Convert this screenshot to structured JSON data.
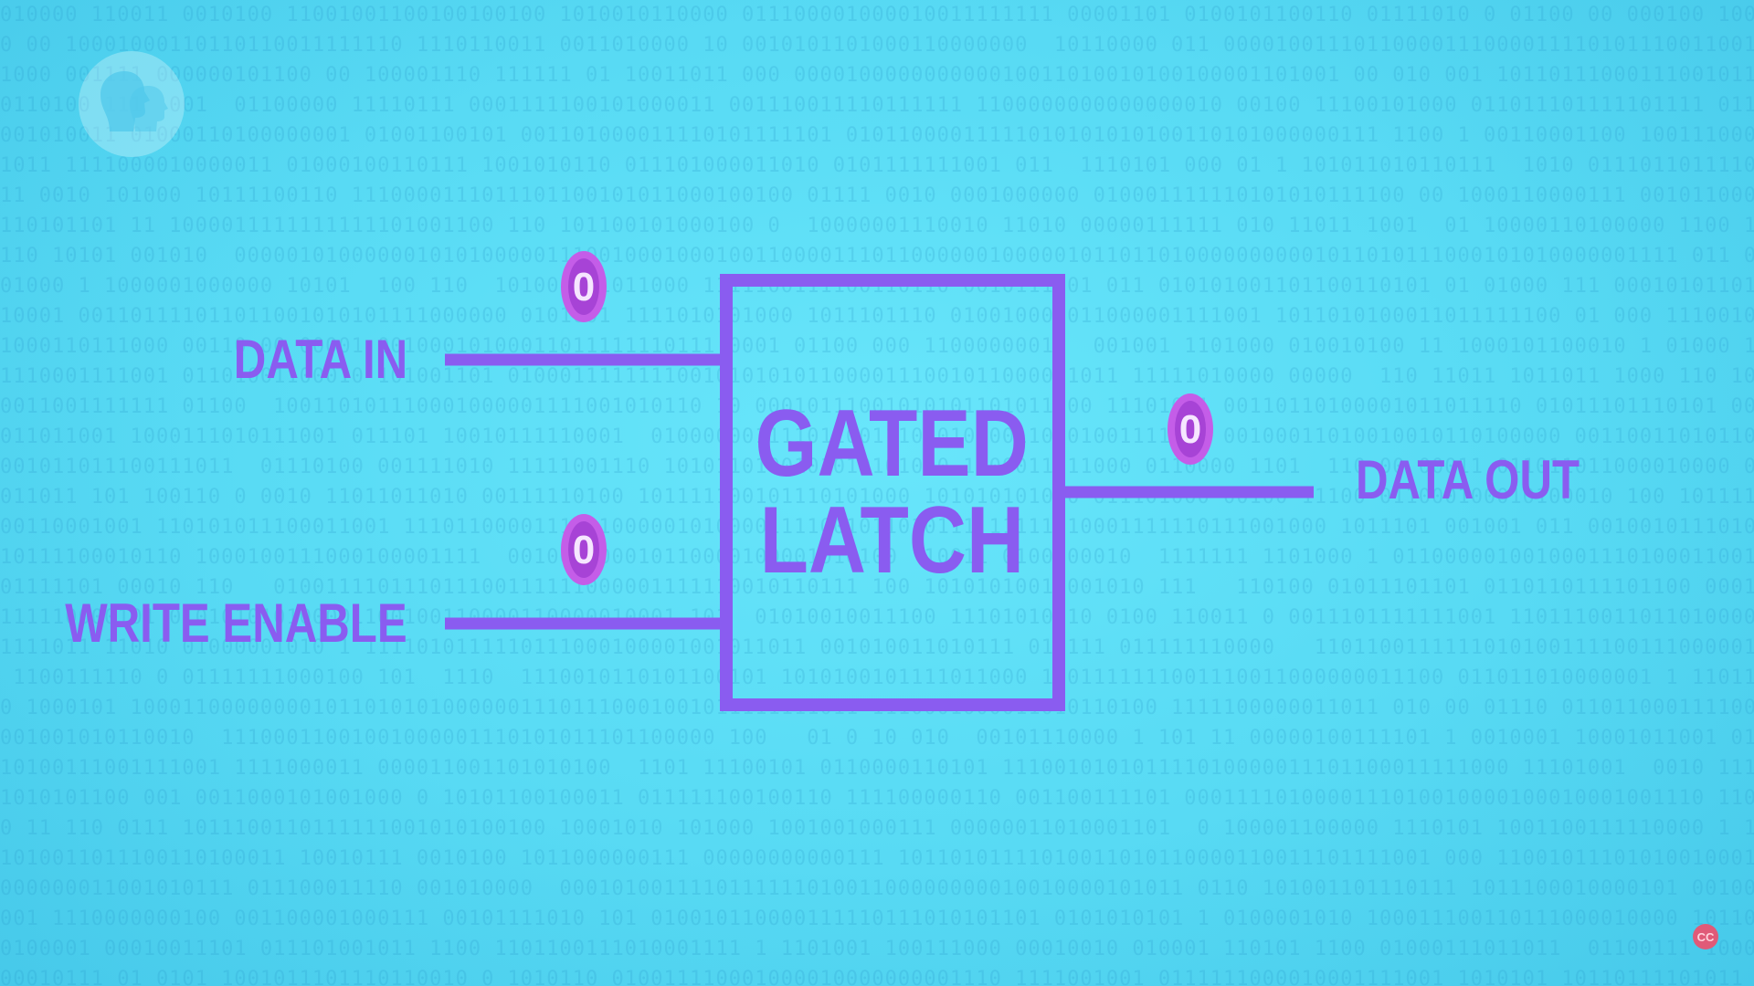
{
  "diagram": {
    "title_line1": "GATED",
    "title_line2": "LATCH",
    "inputs": [
      {
        "label": "DATA IN",
        "bit": "0"
      },
      {
        "label": "WRITE ENABLE",
        "bit": "0"
      }
    ],
    "output": {
      "label": "DATA OUT",
      "bit": "0"
    }
  },
  "colors": {
    "accent": "#8a5cf0",
    "bit_token": "#c45de8",
    "background": "#5adcf5"
  },
  "icons": {
    "logo": "pbs-logo-icon",
    "captions": "closed-captions-icon"
  },
  "cc_label": "CC"
}
